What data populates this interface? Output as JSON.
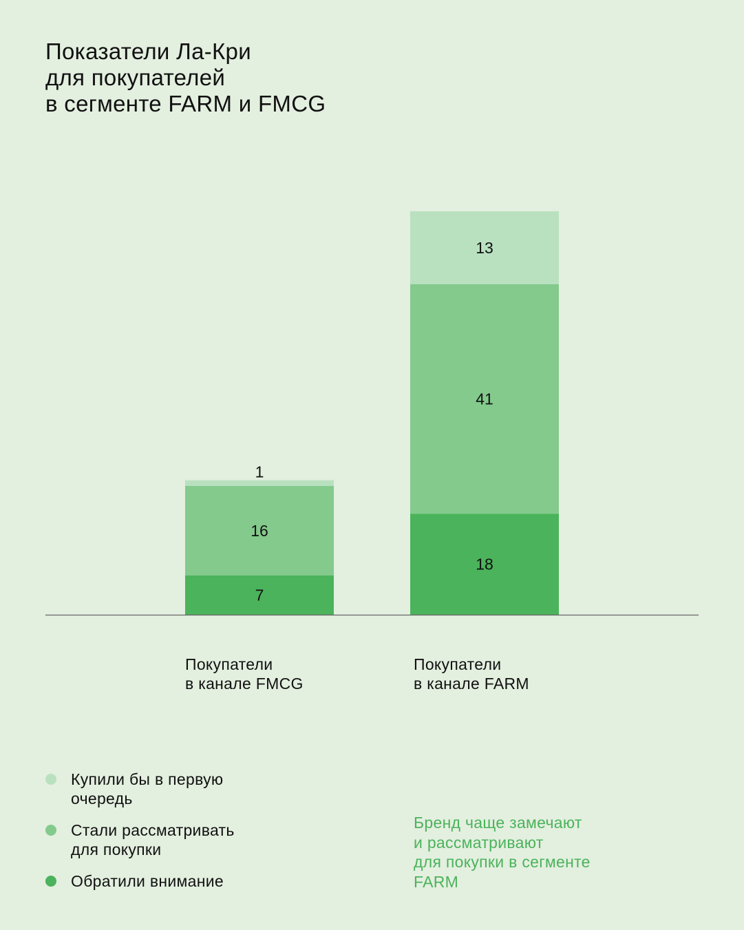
{
  "title_lines": [
    "Показатели Ла-Кри",
    "для покупателей",
    "в сегменте FARM и FMCG"
  ],
  "colors": {
    "background": "#e3efdf",
    "attention": "#4bb35b",
    "considered": "#83ca8c",
    "would_buy": "#b9e1c0",
    "note": "#4bb35b"
  },
  "chart_data": {
    "type": "bar",
    "stacked": true,
    "categories": [
      [
        "Покупатели",
        "в канале FMCG"
      ],
      [
        "Покупатели",
        "в канале FARM"
      ]
    ],
    "series": [
      {
        "name": "Обратили внимание",
        "values": [
          7,
          18
        ]
      },
      {
        "name": "Стали рассматривать для покупки",
        "values": [
          16,
          41
        ]
      },
      {
        "name": "Купили бы в первую очередь",
        "values": [
          1,
          13
        ]
      }
    ],
    "data_labels": true,
    "grid": false,
    "legend_position": "bottom-left"
  },
  "legend": [
    {
      "lines": [
        "Купили бы в первую",
        "очередь"
      ],
      "color": "#b9e1c0"
    },
    {
      "lines": [
        "Стали рассматривать",
        "для покупки"
      ],
      "color": "#83ca8c"
    },
    {
      "lines": [
        "Обратили внимание"
      ],
      "color": "#4bb35b"
    }
  ],
  "note_lines": [
    "Бренд чаще замечают",
    "и рассматривают",
    "для покупки в сегменте",
    "FARM"
  ]
}
